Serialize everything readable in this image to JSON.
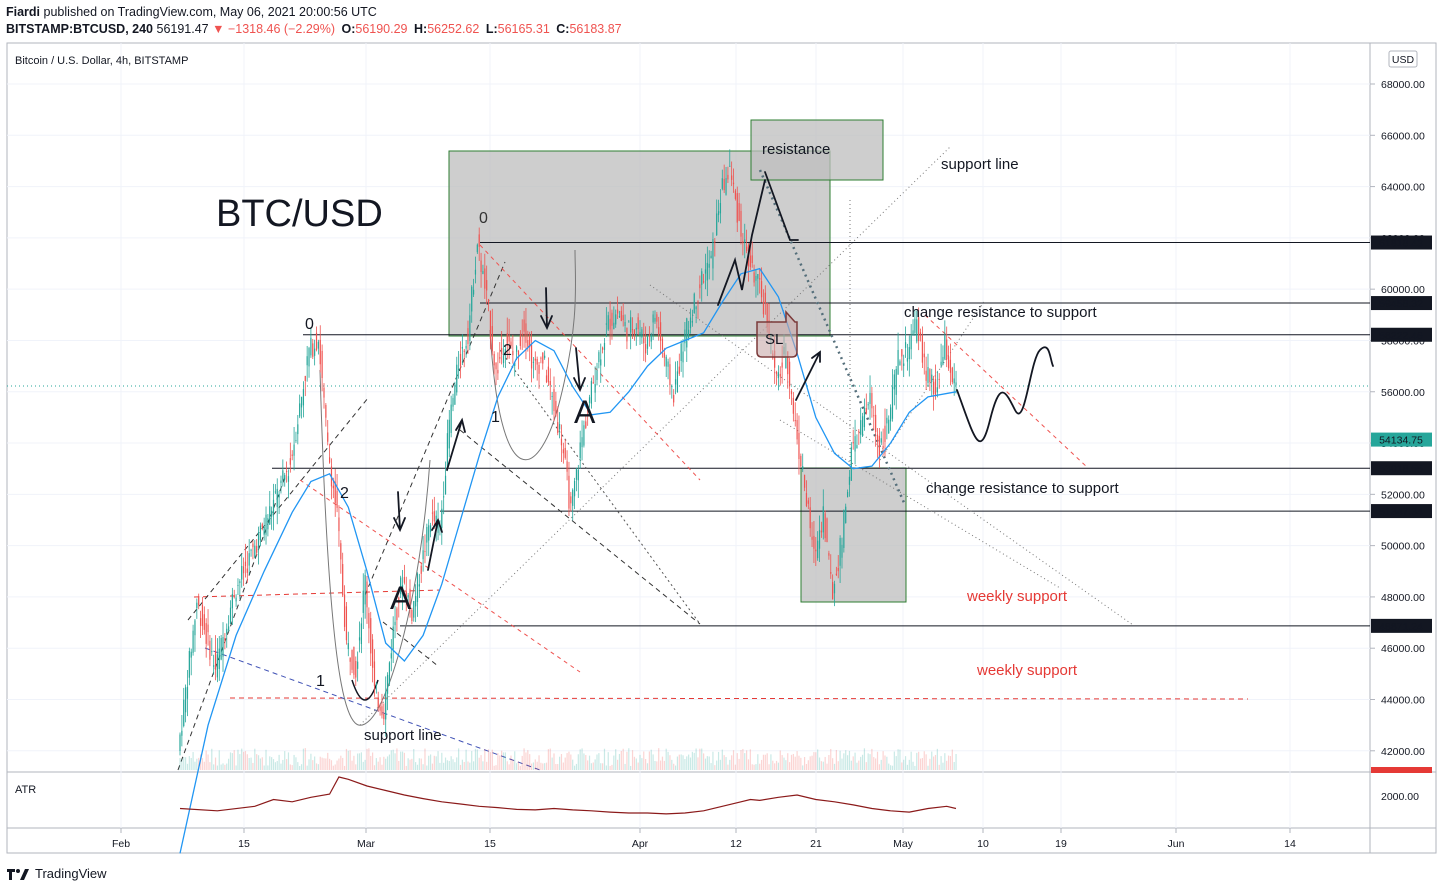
{
  "header": {
    "publisher": "Fiardi",
    "published_text": "published on TradingView.com, May 06, 2021 20:00:56 UTC",
    "symbol": "BITSTAMP:BTCUSD, 240",
    "last": "56191.47",
    "change": "▼ −1318.46 (−2.29%)",
    "o_label": "O:",
    "o": "56190.29",
    "h_label": "H:",
    "h": "56252.62",
    "l_label": "L:",
    "l": "56165.31",
    "c_label": "C:",
    "c": "56183.87"
  },
  "pane_title": "Bitcoin / U.S. Dollar, 4h, BITSTAMP",
  "currency_button": "USD",
  "indicator_label": "ATR",
  "brand": "TradingView",
  "colors": {
    "up": "#26a69a",
    "down": "#ef5350",
    "ma": "#2196f3",
    "drawing": "#131722",
    "zone": "#c8c8c8",
    "zone_border": "#2e7d32"
  },
  "chart_data": {
    "type": "candlestick",
    "title": "BTC/USD",
    "y_ticks": [
      42000,
      44000,
      46000,
      48000,
      50000,
      52000,
      54000,
      56000,
      58000,
      60000,
      62000,
      64000,
      66000,
      68000
    ],
    "y_tick_labels": [
      "42000.00",
      "44000.00",
      "46000.00",
      "48000.00",
      "50000.00",
      "52000.00",
      "54000.00",
      "56000.00",
      "58000.00",
      "60000.00",
      "62000.00",
      "64000.00",
      "66000.00",
      "68000.00"
    ],
    "ylim": [
      41200,
      70000
    ],
    "x_ticks": [
      "Feb",
      "15",
      "Mar",
      "15",
      "Apr",
      "12",
      "21",
      "May",
      "10",
      "19",
      "Jun",
      "14"
    ],
    "price_levels": [
      {
        "value": 61818.43,
        "label": "61818.43"
      },
      {
        "value": 59458.32,
        "label": "59458.32"
      },
      {
        "value": 58222.46,
        "label": "58222.46"
      },
      {
        "value": 53018.55,
        "label": "53018.55"
      },
      {
        "value": 51347.34,
        "label": "51347.34"
      },
      {
        "value": 46871.24,
        "label": "46871.24"
      }
    ],
    "current_price": {
      "value": 54134.75,
      "label": "54134.75"
    },
    "atr_tick": {
      "value": 2000,
      "label": "2000.00"
    },
    "price_path": [
      [
        0,
        42000
      ],
      [
        2,
        47800
      ],
      [
        4,
        45200
      ],
      [
        6,
        48200
      ],
      [
        8,
        49800
      ],
      [
        10,
        51500
      ],
      [
        12,
        53200
      ],
      [
        14,
        57600
      ],
      [
        15,
        58100
      ],
      [
        16,
        53800
      ],
      [
        17,
        51200
      ],
      [
        18,
        46200
      ],
      [
        19,
        45200
      ],
      [
        20,
        48700
      ],
      [
        21,
        44300
      ],
      [
        22,
        43600
      ],
      [
        23,
        46700
      ],
      [
        24,
        48800
      ],
      [
        25,
        47400
      ],
      [
        26,
        49200
      ],
      [
        27,
        51100
      ],
      [
        28,
        50700
      ],
      [
        29,
        54800
      ],
      [
        30,
        57100
      ],
      [
        31,
        58300
      ],
      [
        32,
        61800
      ],
      [
        33,
        59600
      ],
      [
        34,
        56700
      ],
      [
        35,
        58100
      ],
      [
        36,
        57200
      ],
      [
        37,
        58700
      ],
      [
        38,
        56900
      ],
      [
        39,
        57300
      ],
      [
        40,
        55700
      ],
      [
        41,
        54200
      ],
      [
        42,
        51300
      ],
      [
        43,
        53800
      ],
      [
        44,
        55700
      ],
      [
        45,
        57400
      ],
      [
        46,
        58700
      ],
      [
        47,
        59100
      ],
      [
        48,
        58400
      ],
      [
        49,
        58700
      ],
      [
        50,
        57800
      ],
      [
        51,
        59000
      ],
      [
        52,
        57300
      ],
      [
        53,
        55900
      ],
      [
        54,
        57900
      ],
      [
        55,
        59200
      ],
      [
        56,
        60400
      ],
      [
        57,
        61100
      ],
      [
        58,
        63700
      ],
      [
        59,
        64700
      ],
      [
        60,
        62600
      ],
      [
        61,
        61100
      ],
      [
        62,
        60200
      ],
      [
        63,
        58900
      ],
      [
        64,
        56300
      ],
      [
        65,
        57600
      ],
      [
        66,
        54700
      ],
      [
        67,
        52300
      ],
      [
        68,
        49600
      ],
      [
        69,
        51300
      ],
      [
        70,
        48100
      ],
      [
        71,
        50300
      ],
      [
        72,
        53600
      ],
      [
        73,
        54600
      ],
      [
        74,
        55700
      ],
      [
        75,
        53800
      ],
      [
        76,
        54900
      ],
      [
        77,
        57200
      ],
      [
        78,
        57600
      ],
      [
        79,
        58600
      ],
      [
        80,
        56700
      ],
      [
        81,
        55900
      ],
      [
        82,
        57800
      ],
      [
        83,
        56200
      ]
    ],
    "ma_path": [
      [
        0,
        38000
      ],
      [
        3,
        43000
      ],
      [
        6,
        46500
      ],
      [
        9,
        49000
      ],
      [
        12,
        51300
      ],
      [
        14,
        52500
      ],
      [
        16,
        52800
      ],
      [
        18,
        51500
      ],
      [
        20,
        49000
      ],
      [
        22,
        46200
      ],
      [
        24,
        45500
      ],
      [
        26,
        46500
      ],
      [
        28,
        48500
      ],
      [
        30,
        51000
      ],
      [
        32,
        53500
      ],
      [
        34,
        55800
      ],
      [
        36,
        57300
      ],
      [
        38,
        58000
      ],
      [
        40,
        57600
      ],
      [
        42,
        56200
      ],
      [
        44,
        55100
      ],
      [
        46,
        55200
      ],
      [
        48,
        56000
      ],
      [
        50,
        57000
      ],
      [
        52,
        57700
      ],
      [
        54,
        58000
      ],
      [
        56,
        58300
      ],
      [
        58,
        59500
      ],
      [
        60,
        60600
      ],
      [
        62,
        60800
      ],
      [
        64,
        59700
      ],
      [
        66,
        57500
      ],
      [
        68,
        55000
      ],
      [
        70,
        53600
      ],
      [
        72,
        53000
      ],
      [
        74,
        53100
      ],
      [
        76,
        54000
      ],
      [
        78,
        55200
      ],
      [
        80,
        55800
      ],
      [
        83,
        56000
      ]
    ],
    "atr_path": [
      [
        0,
        0.3
      ],
      [
        4,
        0.25
      ],
      [
        8,
        0.35
      ],
      [
        10,
        0.5
      ],
      [
        12,
        0.45
      ],
      [
        14,
        0.55
      ],
      [
        16,
        0.62
      ],
      [
        17,
        1.0
      ],
      [
        18,
        0.95
      ],
      [
        20,
        0.8
      ],
      [
        22,
        0.7
      ],
      [
        24,
        0.6
      ],
      [
        26,
        0.52
      ],
      [
        28,
        0.45
      ],
      [
        30,
        0.4
      ],
      [
        32,
        0.35
      ],
      [
        34,
        0.32
      ],
      [
        36,
        0.28
      ],
      [
        38,
        0.27
      ],
      [
        40,
        0.3
      ],
      [
        42,
        0.27
      ],
      [
        44,
        0.25
      ],
      [
        46,
        0.22
      ],
      [
        48,
        0.2
      ],
      [
        50,
        0.2
      ],
      [
        52,
        0.18
      ],
      [
        54,
        0.2
      ],
      [
        56,
        0.25
      ],
      [
        58,
        0.35
      ],
      [
        60,
        0.45
      ],
      [
        61,
        0.5
      ],
      [
        62,
        0.48
      ],
      [
        64,
        0.55
      ],
      [
        66,
        0.6
      ],
      [
        68,
        0.5
      ],
      [
        70,
        0.45
      ],
      [
        72,
        0.38
      ],
      [
        74,
        0.3
      ],
      [
        76,
        0.25
      ],
      [
        78,
        0.22
      ],
      [
        80,
        0.3
      ],
      [
        82,
        0.35
      ],
      [
        83,
        0.3
      ]
    ],
    "annotations": {
      "resistance": "resistance",
      "support_line_top": "support line",
      "change_res_sup_1": "change resistance to support",
      "change_res_sup_2": "change resistance to support",
      "weekly_support_1": "weekly support",
      "weekly_support_2": "weekly support",
      "support_line_bottom": "support line",
      "sl": "SL",
      "wave_0a": "0",
      "wave_0b": "0",
      "wave_1a": "1",
      "wave_1b": "1",
      "wave_2a": "2",
      "wave_2b": "2",
      "big_a1": "A",
      "big_a2": "A"
    }
  }
}
